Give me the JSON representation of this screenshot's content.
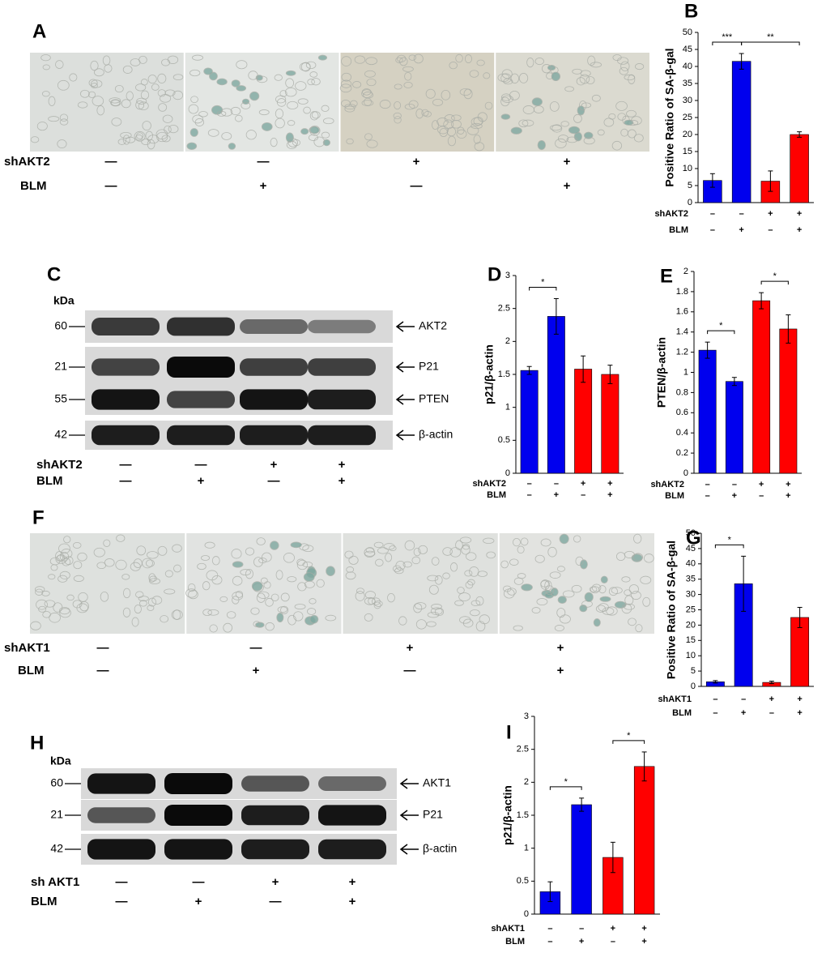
{
  "image_panels": [
    {
      "label": "A",
      "conditions": [
        {
          "name": "shAKT2",
          "values": [
            "—",
            "—",
            "+",
            "+"
          ]
        },
        {
          "name": "BLM",
          "values": [
            "—",
            "+",
            "—",
            "+"
          ]
        }
      ]
    },
    {
      "label": "F",
      "conditions": [
        {
          "name": "shAKT1",
          "values": [
            "—",
            "—",
            "+",
            "+"
          ]
        },
        {
          "name": "BLM",
          "values": [
            "—",
            "+",
            "—",
            "+"
          ]
        }
      ]
    }
  ],
  "blots": [
    {
      "label": "C",
      "unit": "kDa",
      "markers": [
        "60",
        "21",
        "55",
        "42"
      ],
      "bands": [
        "AKT2",
        "P21",
        "PTEN",
        "β-actin"
      ],
      "conditions": [
        {
          "name": "shAKT2",
          "values": [
            "—",
            "—",
            "+",
            "+"
          ]
        },
        {
          "name": "BLM",
          "values": [
            "—",
            "+",
            "—",
            "+"
          ]
        }
      ]
    },
    {
      "label": "H",
      "unit": "kDa",
      "markers": [
        "60",
        "21",
        "42"
      ],
      "bands": [
        "AKT1",
        "P21",
        "β-actin"
      ],
      "conditions": [
        {
          "name": "sh AKT1",
          "values": [
            "—",
            "—",
            "+",
            "+"
          ]
        },
        {
          "name": "BLM",
          "values": [
            "—",
            "+",
            "—",
            "+"
          ]
        }
      ]
    }
  ],
  "chart_data": [
    {
      "type": "bar",
      "label": "B",
      "ylabel": "Positive Ratio of SA-β-gal",
      "ylim": [
        0,
        50
      ],
      "yticks": [
        0,
        5,
        10,
        15,
        20,
        25,
        30,
        35,
        40,
        45,
        50
      ],
      "values": [
        6.5,
        41.5,
        6.3,
        20
      ],
      "errors": [
        2,
        2.3,
        3,
        0.8
      ],
      "colors": [
        "#0000ee",
        "#0000ee",
        "#ff0000",
        "#ff0000"
      ],
      "significance": [
        {
          "text": "***",
          "from": 0,
          "to": 1
        },
        {
          "text": "**",
          "from": 1,
          "to": 3
        }
      ],
      "conditions": [
        {
          "name": "shAKT2",
          "values": [
            "–",
            "–",
            "+",
            "+"
          ]
        },
        {
          "name": "BLM",
          "values": [
            "–",
            "+",
            "–",
            "+"
          ]
        }
      ]
    },
    {
      "type": "bar",
      "label": "D",
      "ylabel": "p21/β-actin",
      "ylim": [
        0,
        3
      ],
      "yticks": [
        0,
        0.5,
        1,
        1.5,
        2,
        2.5,
        3
      ],
      "values": [
        1.56,
        2.38,
        1.58,
        1.5
      ],
      "errors": [
        0.06,
        0.27,
        0.2,
        0.14
      ],
      "colors": [
        "#0000ee",
        "#0000ee",
        "#ff0000",
        "#ff0000"
      ],
      "significance": [
        {
          "text": "*",
          "from": 0,
          "to": 1
        }
      ],
      "conditions": [
        {
          "name": "shAKT2",
          "values": [
            "–",
            "–",
            "+",
            "+"
          ]
        },
        {
          "name": "BLM",
          "values": [
            "–",
            "+",
            "–",
            "+"
          ]
        }
      ]
    },
    {
      "type": "bar",
      "label": "E",
      "ylabel": "PTEN/β-actin",
      "ylim": [
        0,
        2
      ],
      "yticks": [
        0,
        0.2,
        0.4,
        0.6,
        0.8,
        1,
        1.2,
        1.4,
        1.6,
        1.8,
        2
      ],
      "values": [
        1.22,
        0.91,
        1.71,
        1.43
      ],
      "errors": [
        0.08,
        0.04,
        0.08,
        0.14
      ],
      "colors": [
        "#0000ee",
        "#0000ee",
        "#ff0000",
        "#ff0000"
      ],
      "significance": [
        {
          "text": "*",
          "from": 0,
          "to": 1
        },
        {
          "text": "*",
          "from": 2,
          "to": 3
        }
      ],
      "conditions": [
        {
          "name": "shAKT2",
          "values": [
            "–",
            "–",
            "+",
            "+"
          ]
        },
        {
          "name": "BLM",
          "values": [
            "–",
            "+",
            "–",
            "+"
          ]
        }
      ]
    },
    {
      "type": "bar",
      "label": "G",
      "ylabel": "Positive Ratio of SA-β-gal",
      "ylim": [
        0,
        50
      ],
      "yticks": [
        0,
        5,
        10,
        15,
        20,
        25,
        30,
        35,
        40,
        45,
        50
      ],
      "values": [
        1.5,
        33.5,
        1.3,
        22.5
      ],
      "errors": [
        0.4,
        9,
        0.4,
        3.3
      ],
      "colors": [
        "#0000ee",
        "#0000ee",
        "#ff0000",
        "#ff0000"
      ],
      "significance": [
        {
          "text": "*",
          "from": 0,
          "to": 1
        }
      ],
      "conditions": [
        {
          "name": "shAKT1",
          "values": [
            "–",
            "–",
            "+",
            "+"
          ]
        },
        {
          "name": "BLM",
          "values": [
            "–",
            "+",
            "–",
            "+"
          ]
        }
      ]
    },
    {
      "type": "bar",
      "label": "I",
      "ylabel": "p21/β-actin",
      "ylim": [
        0,
        3
      ],
      "yticks": [
        0,
        0.5,
        1,
        1.5,
        2,
        2.5,
        3
      ],
      "values": [
        0.34,
        1.66,
        0.86,
        2.24
      ],
      "errors": [
        0.15,
        0.1,
        0.23,
        0.22
      ],
      "colors": [
        "#0000ee",
        "#0000ee",
        "#ff0000",
        "#ff0000"
      ],
      "significance": [
        {
          "text": "*",
          "from": 0,
          "to": 1
        },
        {
          "text": "*",
          "from": 2,
          "to": 3
        }
      ],
      "conditions": [
        {
          "name": "shAKT1",
          "values": [
            "–",
            "–",
            "+",
            "+"
          ]
        },
        {
          "name": "BLM",
          "values": [
            "–",
            "+",
            "–",
            "+"
          ]
        }
      ]
    }
  ]
}
